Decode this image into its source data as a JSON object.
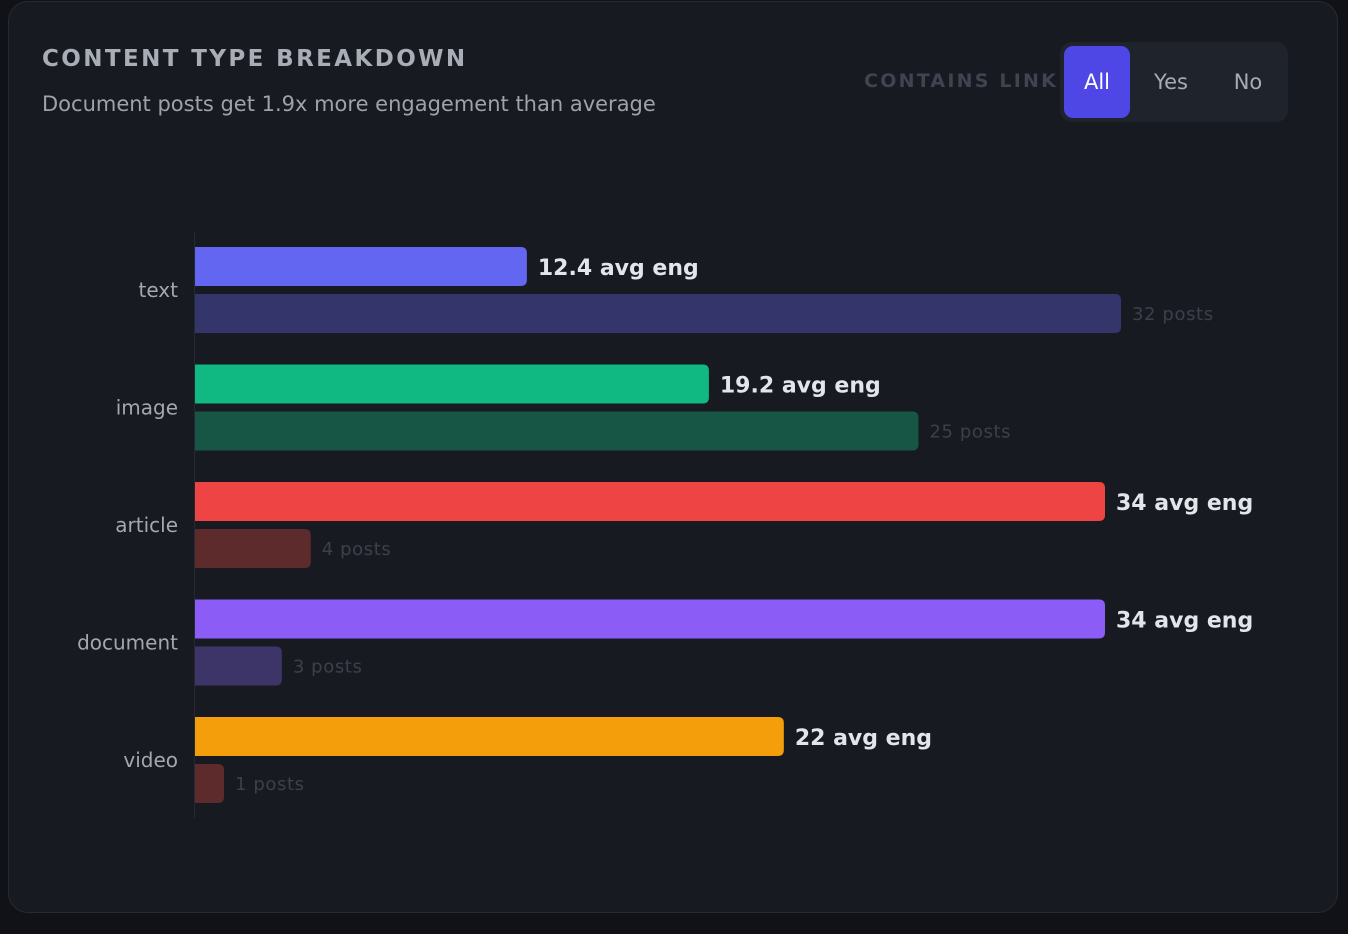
{
  "header": {
    "title": "CONTENT TYPE BREAKDOWN",
    "subtitle": "Document posts get 1.9x more engagement than average"
  },
  "filter": {
    "label": "CONTAINS LINK",
    "options": [
      "All",
      "Yes",
      "No"
    ],
    "selected": "All"
  },
  "chart_data": {
    "type": "bar",
    "orientation": "horizontal",
    "categories": [
      "text",
      "image",
      "article",
      "document",
      "video"
    ],
    "series": [
      {
        "key": "avg_eng",
        "values": [
          12.4,
          19.2,
          34,
          34,
          22
        ],
        "labels": [
          "12.4 avg eng",
          "19.2 avg eng",
          "34 avg eng",
          "34 avg eng",
          "22 avg eng"
        ]
      },
      {
        "key": "posts",
        "values": [
          32,
          25,
          4,
          3,
          1
        ],
        "labels": [
          "32 posts",
          "25 posts",
          "4 posts",
          "3 posts",
          "1 posts"
        ]
      }
    ],
    "colors": {
      "avg_eng": [
        "#6366f1",
        "#10b981",
        "#ef4444",
        "#8b5cf6",
        "#f59e0b"
      ],
      "posts": [
        "#34356b",
        "#175545",
        "#5e2b2c",
        "#3d3567",
        "#5e2b2c"
      ]
    },
    "axis_max": {
      "avg_eng": 34,
      "posts": 32
    },
    "grid": false,
    "legend": "none"
  }
}
